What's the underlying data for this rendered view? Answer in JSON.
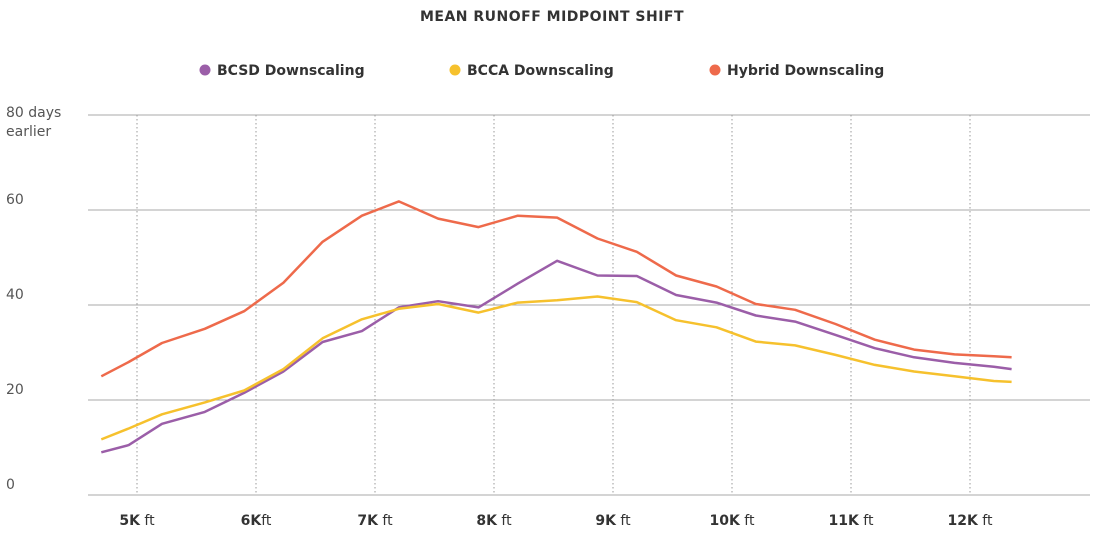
{
  "chart_data": {
    "type": "line",
    "title": "MEAN RUNOFF MIDPOINT SHIFT",
    "x": [
      4700,
      4930,
      5210,
      5570,
      5900,
      6230,
      6560,
      6890,
      7200,
      7530,
      7870,
      8200,
      8530,
      8870,
      9200,
      9530,
      9870,
      10200,
      10530,
      10870,
      11200,
      11530,
      11870,
      12200,
      12350
    ],
    "series": [
      {
        "name": "BCSD Downscaling",
        "color": "#9b5ea8",
        "values": [
          9,
          10.5,
          15,
          17.5,
          21.5,
          26,
          32.2,
          34.5,
          39.5,
          40.8,
          39.5,
          44.5,
          49.3,
          46.2,
          46.1,
          42.1,
          40.5,
          37.8,
          36.5,
          33.7,
          30.9,
          29,
          27.8,
          27,
          26.5
        ]
      },
      {
        "name": "BCCA Downscaling",
        "color": "#f6c12d",
        "values": [
          11.7,
          14,
          17,
          19.5,
          22,
          26.5,
          33,
          37,
          39.2,
          40.2,
          38.4,
          40.5,
          41,
          41.8,
          40.6,
          36.8,
          35.3,
          32.3,
          31.5,
          29.5,
          27.4,
          26,
          25,
          24,
          23.8
        ]
      },
      {
        "name": "Hybrid Downscaling",
        "color": "#ee6a4b",
        "values": [
          25,
          28,
          32,
          35,
          38.7,
          44.7,
          53.3,
          58.8,
          61.8,
          58.2,
          56.4,
          58.8,
          58.4,
          54,
          51.2,
          46.2,
          43.9,
          40.2,
          39,
          36,
          32.7,
          30.6,
          29.6,
          29.2,
          29
        ]
      }
    ],
    "xlim": [
      4000,
      13000
    ],
    "xticks": [
      {
        "value": 5000,
        "label": "5K ft"
      },
      {
        "value": 6000,
        "label": "6Kft"
      },
      {
        "value": 7000,
        "label": "7K ft"
      },
      {
        "value": 8000,
        "label": "8K ft"
      },
      {
        "value": 9000,
        "label": "9K ft"
      },
      {
        "value": 10000,
        "label": "10K ft"
      },
      {
        "value": 11000,
        "label": "11K ft"
      },
      {
        "value": 12000,
        "label": "12K ft"
      }
    ],
    "ylim": [
      0,
      80
    ],
    "yticks": [
      0,
      20,
      40,
      60,
      {
        "value": 80,
        "label": "80 days earlier"
      }
    ],
    "grid": true
  }
}
